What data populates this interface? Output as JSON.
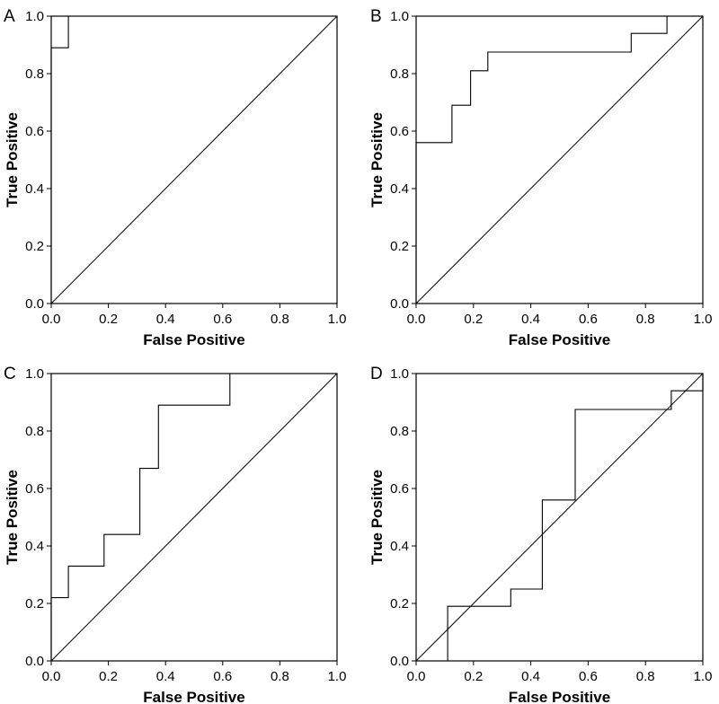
{
  "chart_data": [
    {
      "type": "line",
      "panel_label": "A",
      "xlabel": "False Positive",
      "ylabel": "True Positive",
      "xlim": [
        0,
        1
      ],
      "ylim": [
        0,
        1
      ],
      "xticks": [
        "0.0",
        "0.2",
        "0.4",
        "0.6",
        "0.8",
        "1.0"
      ],
      "yticks": [
        "0.0",
        "0.2",
        "0.4",
        "0.6",
        "0.8",
        "1.0"
      ],
      "grid": false,
      "reference_line": [
        [
          0,
          0
        ],
        [
          1,
          1
        ]
      ],
      "series": [
        {
          "points": [
            [
              0,
              0
            ],
            [
              0,
              0.89
            ],
            [
              0.06,
              0.89
            ],
            [
              0.06,
              1.0
            ],
            [
              1.0,
              1.0
            ]
          ]
        }
      ]
    },
    {
      "type": "line",
      "panel_label": "B",
      "xlabel": "False Positive",
      "ylabel": "True Positive",
      "xlim": [
        0,
        1
      ],
      "ylim": [
        0,
        1
      ],
      "xticks": [
        "0.0",
        "0.2",
        "0.4",
        "0.6",
        "0.8",
        "1.0"
      ],
      "yticks": [
        "0.0",
        "0.2",
        "0.4",
        "0.6",
        "0.8",
        "1.0"
      ],
      "grid": false,
      "reference_line": [
        [
          0,
          0
        ],
        [
          1,
          1
        ]
      ],
      "series": [
        {
          "points": [
            [
              0,
              0
            ],
            [
              0,
              0.56
            ],
            [
              0.125,
              0.56
            ],
            [
              0.125,
              0.69
            ],
            [
              0.19,
              0.69
            ],
            [
              0.19,
              0.81
            ],
            [
              0.25,
              0.81
            ],
            [
              0.25,
              0.875
            ],
            [
              0.75,
              0.875
            ],
            [
              0.75,
              0.94
            ],
            [
              0.875,
              0.94
            ],
            [
              0.875,
              1.0
            ],
            [
              1.0,
              1.0
            ]
          ]
        }
      ]
    },
    {
      "type": "line",
      "panel_label": "C",
      "xlabel": "False Positive",
      "ylabel": "True Positive",
      "xlim": [
        0,
        1
      ],
      "ylim": [
        0,
        1
      ],
      "xticks": [
        "0.0",
        "0.2",
        "0.4",
        "0.6",
        "0.8",
        "1.0"
      ],
      "yticks": [
        "0.0",
        "0.2",
        "0.4",
        "0.6",
        "0.8",
        "1.0"
      ],
      "grid": false,
      "reference_line": [
        [
          0,
          0
        ],
        [
          1,
          1
        ]
      ],
      "series": [
        {
          "points": [
            [
              0,
              0
            ],
            [
              0,
              0.22
            ],
            [
              0.06,
              0.22
            ],
            [
              0.06,
              0.33
            ],
            [
              0.185,
              0.33
            ],
            [
              0.185,
              0.44
            ],
            [
              0.31,
              0.44
            ],
            [
              0.31,
              0.67
            ],
            [
              0.375,
              0.67
            ],
            [
              0.375,
              0.89
            ],
            [
              0.625,
              0.89
            ],
            [
              0.625,
              1.0
            ],
            [
              1.0,
              1.0
            ]
          ]
        }
      ]
    },
    {
      "type": "line",
      "panel_label": "D",
      "xlabel": "False Positive",
      "ylabel": "True Positive",
      "xlim": [
        0,
        1
      ],
      "ylim": [
        0,
        1
      ],
      "xticks": [
        "0.0",
        "0.2",
        "0.4",
        "0.6",
        "0.8",
        "1.0"
      ],
      "yticks": [
        "0.0",
        "0.2",
        "0.4",
        "0.6",
        "0.8",
        "1.0"
      ],
      "grid": false,
      "reference_line": [
        [
          0,
          0
        ],
        [
          1,
          1
        ]
      ],
      "series": [
        {
          "points": [
            [
              0,
              0
            ],
            [
              0.11,
              0
            ],
            [
              0.11,
              0.19
            ],
            [
              0.33,
              0.19
            ],
            [
              0.33,
              0.25
            ],
            [
              0.44,
              0.25
            ],
            [
              0.44,
              0.56
            ],
            [
              0.555,
              0.56
            ],
            [
              0.555,
              0.875
            ],
            [
              0.89,
              0.875
            ],
            [
              0.89,
              0.94
            ],
            [
              1.0,
              0.94
            ],
            [
              1.0,
              1.0
            ]
          ]
        }
      ]
    }
  ]
}
